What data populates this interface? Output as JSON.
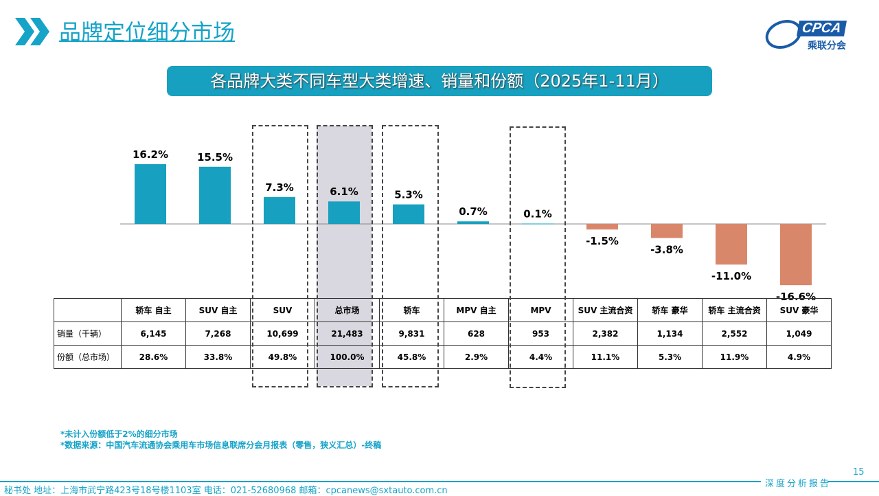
{
  "header": {
    "title": "品牌定位细分市场",
    "logo_text": "CPCA",
    "logo_cn": "乘联分会"
  },
  "chart_data": {
    "type": "bar",
    "title": "各品牌大类不同车型大类增速、销量和份额（2025年1-11月）",
    "categories": [
      "轿车 自主",
      "SUV 自主",
      "SUV",
      "总市场",
      "轿车",
      "MPV 自主",
      "MPV",
      "SUV 主流合资",
      "轿车 豪华",
      "轿车 主流合资",
      "SUV 豪华"
    ],
    "values": [
      16.2,
      15.5,
      7.3,
      6.1,
      5.3,
      0.7,
      0.1,
      -1.5,
      -3.8,
      -11.0,
      -16.6
    ],
    "labels": [
      "16.2%",
      "15.5%",
      "7.3%",
      "6.1%",
      "5.3%",
      "0.7%",
      "0.1%",
      "-1.5%",
      "-3.8%",
      "-11.0%",
      "-16.6%"
    ],
    "positive_color": "#17a0bf",
    "negative_color": "#d9876b",
    "highlight_color": "#d9d8e0",
    "highlighted": [
      "SUV",
      "总市场",
      "轿车",
      "MPV"
    ],
    "shaded": "总市场"
  },
  "table": {
    "rows": [
      {
        "label": "销量（千辆）",
        "values": [
          "6,145",
          "7,268",
          "10,699",
          "21,483",
          "9,831",
          "628",
          "953",
          "2,382",
          "1,134",
          "2,552",
          "1,049"
        ]
      },
      {
        "label": "份额（总市场）",
        "values": [
          "28.6%",
          "33.8%",
          "49.8%",
          "100.0%",
          "45.8%",
          "2.9%",
          "4.4%",
          "11.1%",
          "5.3%",
          "11.9%",
          "4.9%"
        ]
      }
    ]
  },
  "notes": [
    "*未计入份额低于2%的细分市场",
    "*数据来源：中国汽车流通协会乘用车市场信息联席分会月报表（零售，狭义汇总）-终稿"
  ],
  "footer": {
    "text": "秘书处   地址：上海市武宁路423号18号楼1103室  电话：021-52680968   邮箱：cpcanews@sxtauto.com.cn",
    "tag": "深度分析报告",
    "page": "15"
  }
}
